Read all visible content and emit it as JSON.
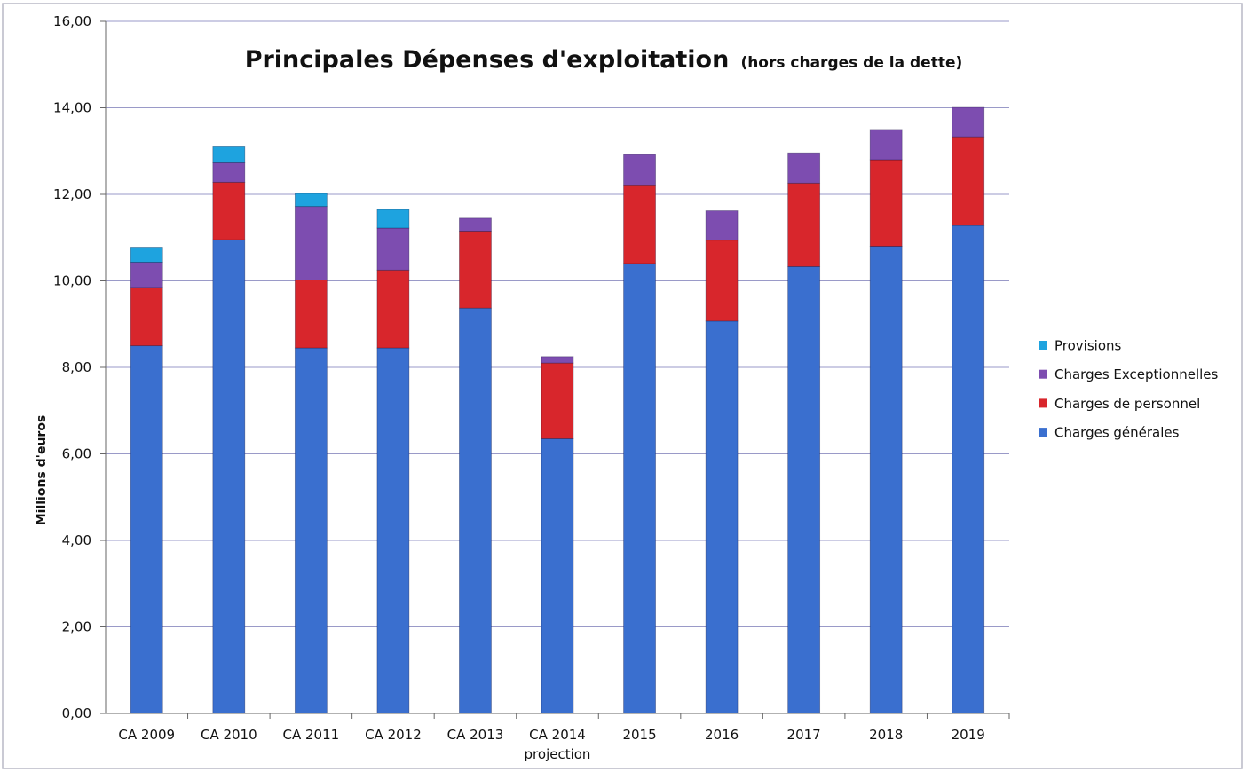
{
  "chart_data": {
    "type": "bar",
    "stacked": true,
    "title": "Principales Dépenses d'exploitation",
    "subtitle": "(hors charges de la dette)",
    "xlabel": "",
    "ylabel": "Millions d'euros",
    "ylim": [
      0,
      16
    ],
    "yticks": [
      "0,00",
      "2,00",
      "4,00",
      "6,00",
      "8,00",
      "10,00",
      "12,00",
      "14,00",
      "16,00"
    ],
    "grid": true,
    "legend_position": "right",
    "categories": [
      "CA 2009",
      "CA 2010",
      "CA 2011",
      "CA 2012",
      "CA 2013",
      "CA 2014\nprojection",
      "2015",
      "2016",
      "2017",
      "2018",
      "2019"
    ],
    "series": [
      {
        "name": "Charges générales",
        "color": "#3a6fcf",
        "values": [
          8.5,
          10.95,
          8.45,
          8.45,
          9.37,
          6.35,
          10.4,
          9.07,
          10.33,
          10.8,
          11.28
        ]
      },
      {
        "name": "Charges de personnel",
        "color": "#d8262c",
        "values": [
          1.35,
          1.33,
          1.57,
          1.8,
          1.78,
          1.75,
          1.8,
          1.87,
          1.93,
          2.0,
          2.05
        ]
      },
      {
        "name": "Charges Exceptionnelles",
        "color": "#7d4db0",
        "values": [
          0.58,
          0.45,
          1.7,
          0.97,
          0.3,
          0.15,
          0.72,
          0.68,
          0.7,
          0.7,
          0.68
        ]
      },
      {
        "name": "Provisions",
        "color": "#1ea3df",
        "values": [
          0.35,
          0.37,
          0.3,
          0.43,
          0.0,
          0.0,
          0.0,
          0.0,
          0.0,
          0.0,
          0.0
        ]
      }
    ],
    "legend_order": [
      "Provisions",
      "Charges Exceptionnelles",
      "Charges de personnel",
      "Charges générales"
    ]
  }
}
